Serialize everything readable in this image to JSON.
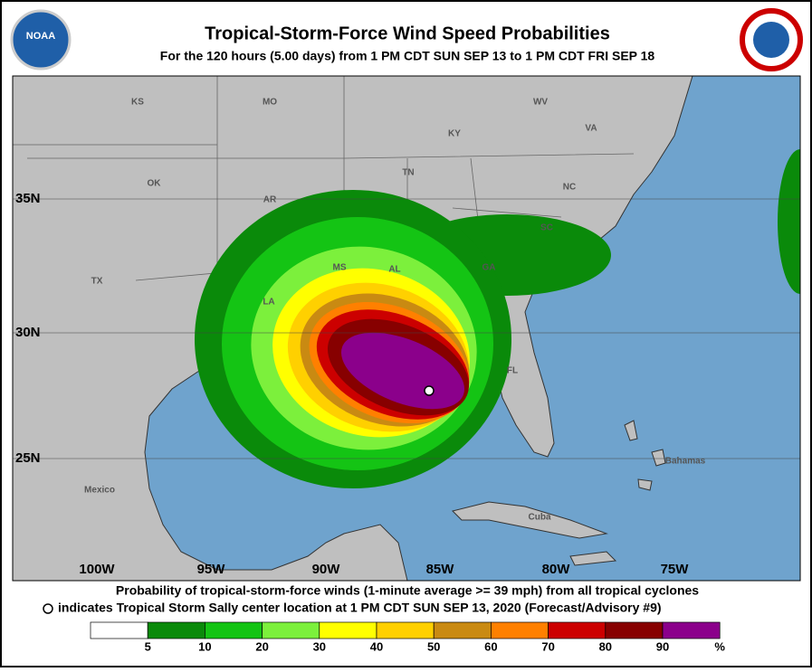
{
  "header": {
    "title": "Tropical-Storm-Force Wind Speed Probabilities",
    "subtitle": "For the 120 hours (5.00 days) from 1 PM CDT SUN SEP 13 to 1 PM CDT FRI SEP 18",
    "logo_left": "NOAA"
  },
  "map": {
    "place_labels": [
      "KS",
      "MO",
      "WV",
      "KY",
      "VA",
      "OK",
      "TN",
      "NC",
      "AR",
      "SC",
      "MS",
      "AL",
      "GA",
      "LA",
      "TX",
      "FL",
      "Bahamas",
      "Mexico",
      "Cuba"
    ],
    "lat_labels": [
      "35N",
      "30N",
      "25N"
    ],
    "lon_labels": [
      "100W",
      "95W",
      "90W",
      "85W",
      "80W",
      "75W"
    ]
  },
  "caption": {
    "line1": "Probability of tropical-storm-force winds (1-minute average >= 39 mph) from all tropical cyclones",
    "line2": "indicates Tropical Storm Sally center location at 1 PM CDT SUN SEP 13, 2020 (Forecast/Advisory #9)"
  },
  "legend": {
    "ticks": [
      5,
      10,
      20,
      30,
      40,
      50,
      60,
      70,
      80,
      90
    ],
    "unit": "%",
    "colors": [
      "#ffffff",
      "#0a8a0a",
      "#14c414",
      "#7cf03c",
      "#ffff00",
      "#ffd000",
      "#c98a12",
      "#ff8000",
      "#cc0000",
      "#870000",
      "#8b008b"
    ]
  }
}
